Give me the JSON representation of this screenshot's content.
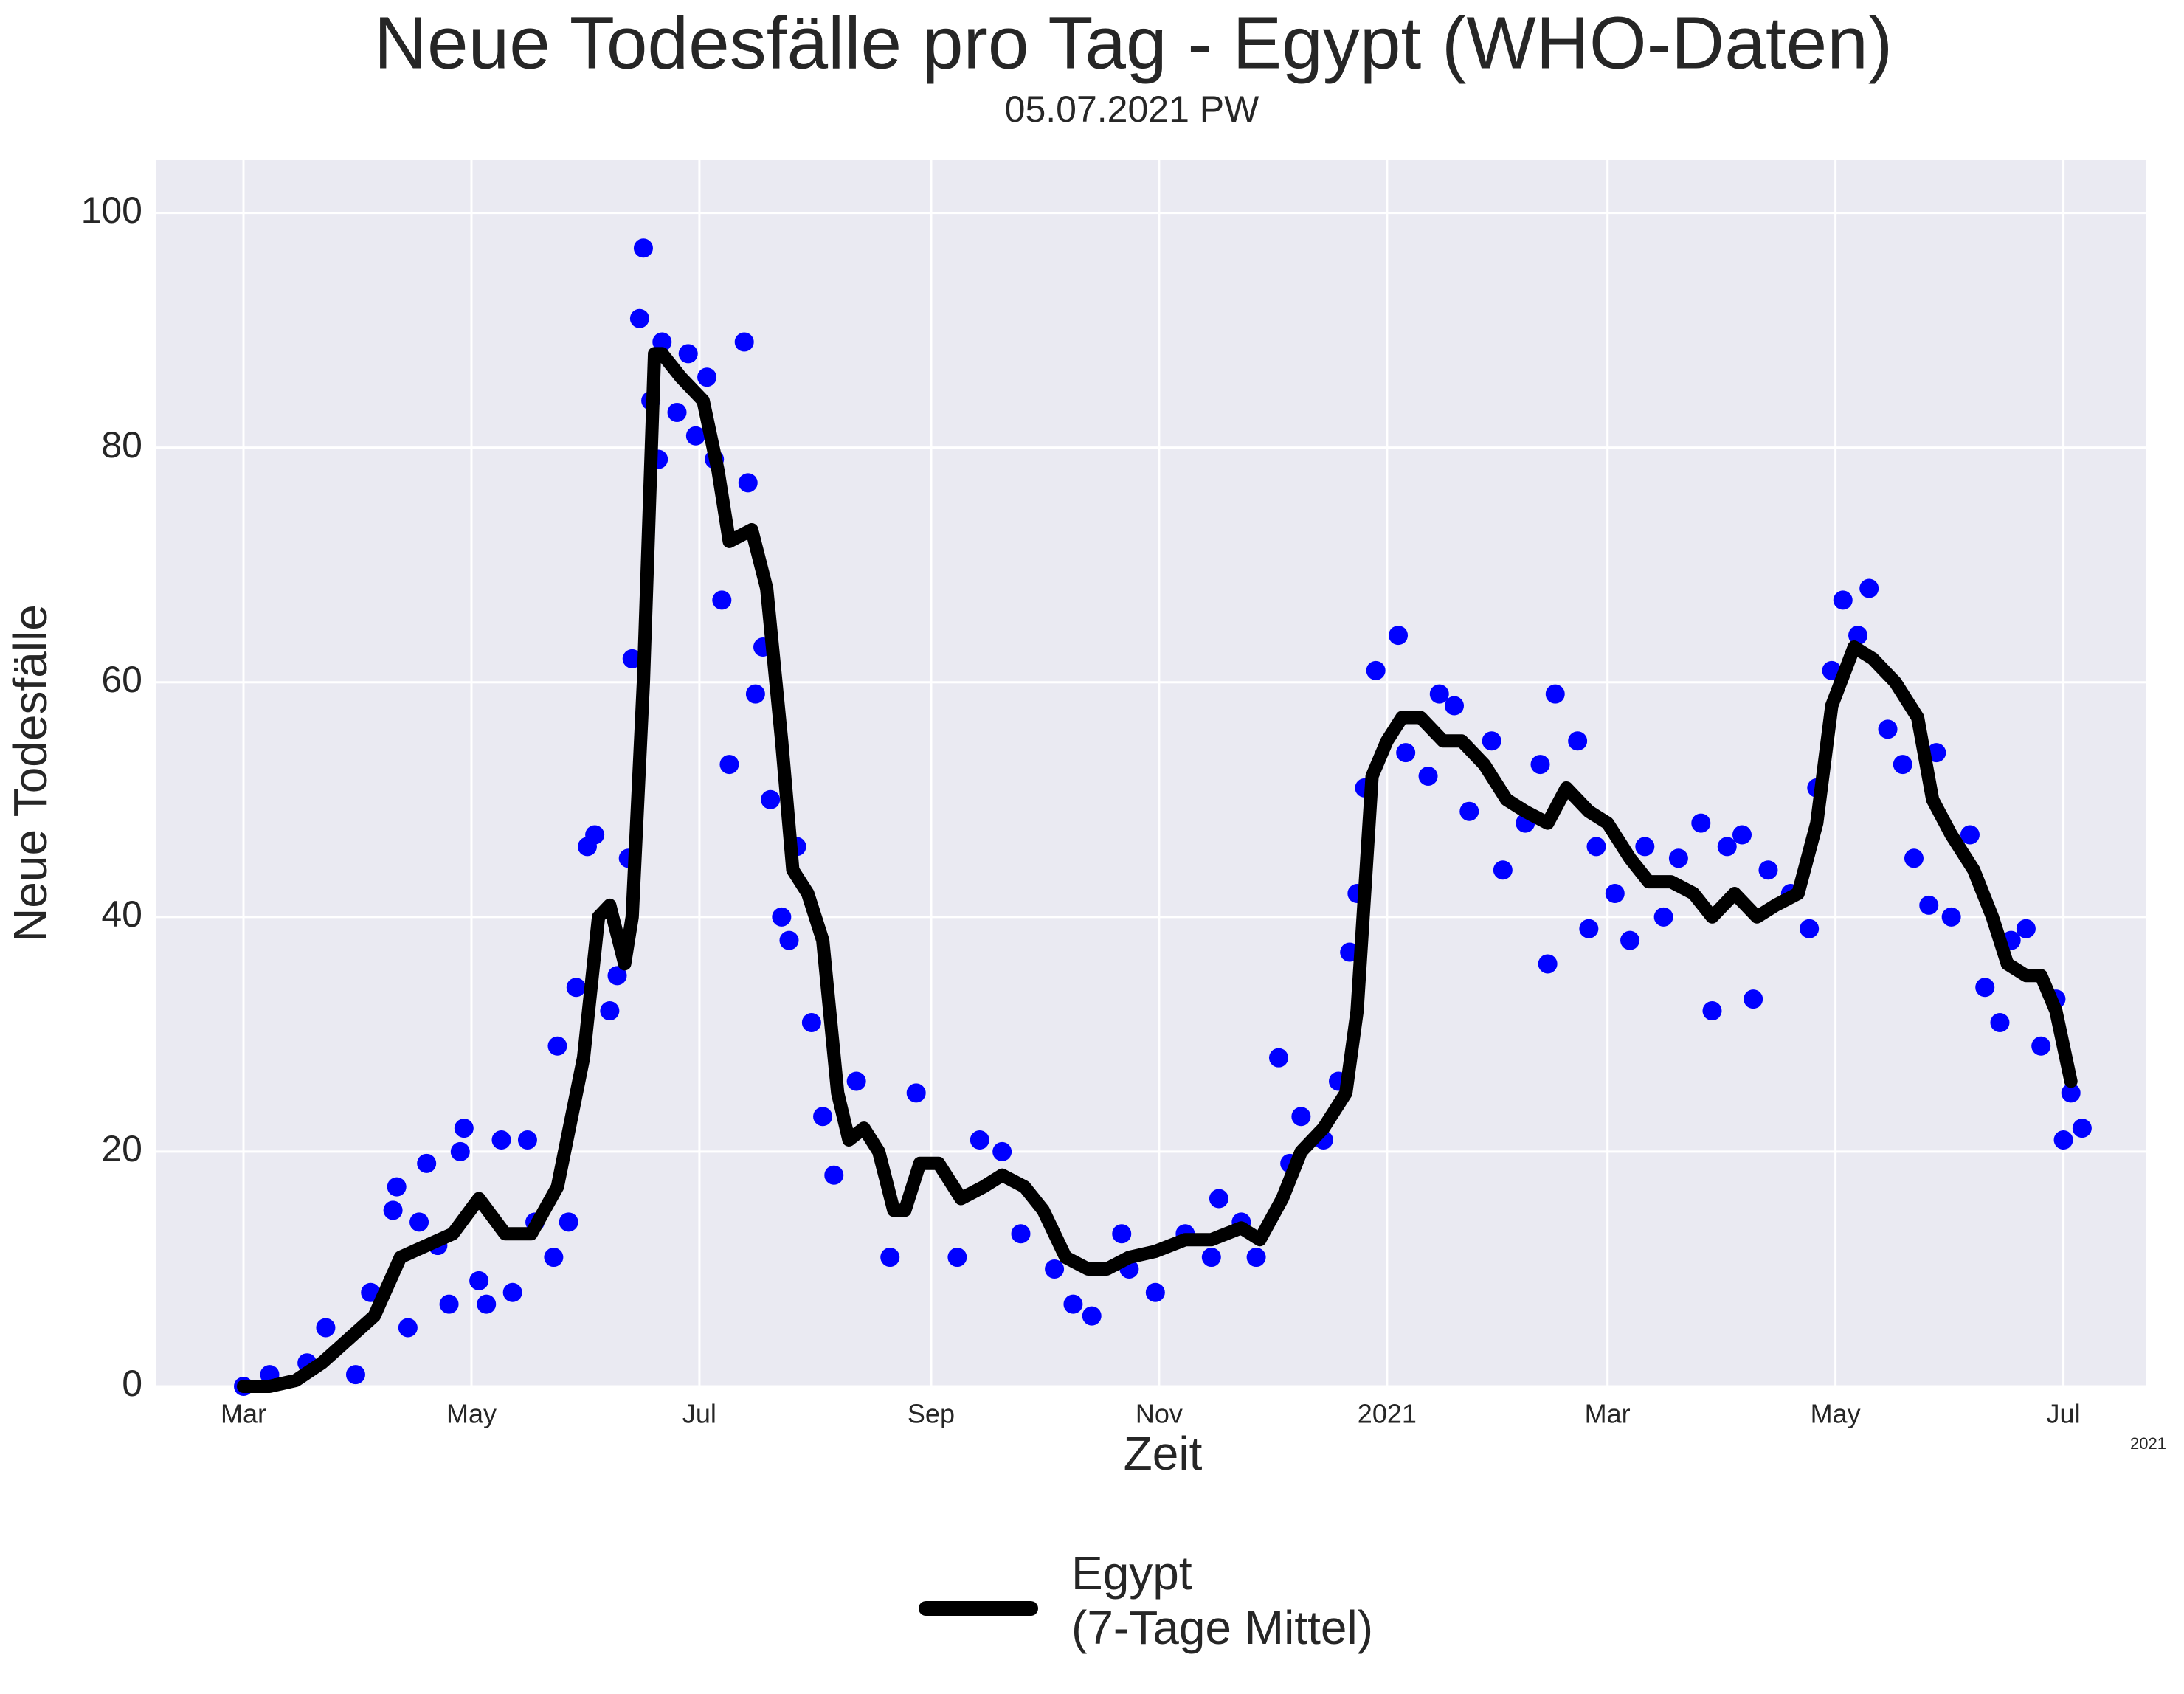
{
  "chart_data": {
    "type": "line",
    "title": "Neue Todesfälle pro Tag - Egypt (WHO-Daten)",
    "subtitle": "05.07.2021 PW",
    "xlabel": "Zeit",
    "ylabel": "Neue Todesfälle",
    "x_offset_label": "2021",
    "xlim": [
      -23.5,
      509
    ],
    "ylim": [
      0,
      104.5
    ],
    "xticks": [
      {
        "value": 0,
        "label": "Mar"
      },
      {
        "value": 61,
        "label": "May"
      },
      {
        "value": 122,
        "label": "Jul"
      },
      {
        "value": 184,
        "label": "Sep"
      },
      {
        "value": 245,
        "label": "Nov"
      },
      {
        "value": 306,
        "label": "2021"
      },
      {
        "value": 365,
        "label": "Mar"
      },
      {
        "value": 426,
        "label": "May"
      },
      {
        "value": 487,
        "label": "Jul"
      }
    ],
    "yticks": [
      0,
      20,
      40,
      60,
      80,
      100
    ],
    "grid": true,
    "background": "#eaeaf2",
    "legend": "bottom",
    "series": [
      {
        "type": "scatter",
        "color": "#0000ff",
        "x": [
          0,
          7,
          17,
          22,
          30,
          34,
          40,
          41,
          44,
          47,
          49,
          52,
          55,
          58,
          59,
          63,
          65,
          69,
          72,
          76,
          78,
          83,
          84,
          87,
          89,
          92,
          94,
          98,
          100,
          103,
          104,
          106,
          107,
          109,
          111,
          112,
          116,
          119,
          121,
          124,
          126,
          128,
          130,
          134,
          135,
          137,
          139,
          141,
          144,
          146,
          148,
          152,
          155,
          158,
          164,
          173,
          180,
          191,
          197,
          203,
          208,
          217,
          222,
          227,
          235,
          237,
          244,
          252,
          259,
          261,
          267,
          271,
          277,
          280,
          283,
          289,
          293,
          296,
          298,
          300,
          303,
          309,
          311,
          317,
          320,
          324,
          328,
          334,
          337,
          343,
          347,
          349,
          351,
          357,
          360,
          362,
          367,
          371,
          375,
          380,
          384,
          390,
          393,
          397,
          401,
          404,
          408,
          414,
          419,
          421,
          425,
          428,
          432,
          435,
          440,
          444,
          447,
          451,
          453,
          457,
          462,
          466,
          470,
          473,
          477,
          481,
          485,
          487,
          489,
          492
        ],
        "values": [
          0,
          1,
          2,
          5,
          1,
          8,
          15,
          17,
          5,
          14,
          19,
          12,
          7,
          20,
          22,
          9,
          7,
          21,
          8,
          21,
          14,
          11,
          29,
          14,
          34,
          46,
          47,
          32,
          35,
          45,
          62,
          91,
          97,
          84,
          79,
          89,
          83,
          88,
          81,
          86,
          79,
          67,
          53,
          89,
          77,
          59,
          63,
          50,
          40,
          38,
          46,
          31,
          23,
          18,
          26,
          11,
          25,
          11,
          21,
          20,
          13,
          10,
          7,
          6,
          13,
          10,
          8,
          13,
          11,
          16,
          14,
          11,
          28,
          19,
          23,
          21,
          26,
          37,
          42,
          51,
          61,
          64,
          54,
          52,
          59,
          58,
          49,
          55,
          44,
          48,
          53,
          36,
          59,
          55,
          39,
          46,
          42,
          38,
          46,
          40,
          45,
          48,
          32,
          46,
          47,
          33,
          44,
          42,
          39,
          51,
          61,
          67,
          64,
          68,
          56,
          53,
          45,
          41,
          54,
          40,
          47,
          34,
          31,
          38,
          39,
          29,
          33,
          21,
          25,
          22
        ]
      },
      {
        "type": "line",
        "name": "Egypt\n(7-Tage Mittel)",
        "color": "#000000",
        "x": [
          0,
          7,
          14,
          21,
          28,
          35,
          42,
          49,
          56,
          63,
          70,
          77,
          84,
          91,
          95,
          98,
          102,
          104,
          107,
          110,
          112,
          117,
          123,
          127,
          130,
          136,
          140,
          144,
          147,
          151,
          155,
          159,
          162,
          166,
          170,
          174,
          177,
          181,
          186,
          192,
          198,
          203,
          209,
          214,
          220,
          226,
          231,
          237,
          244,
          252,
          259,
          267,
          272,
          278,
          283,
          289,
          295,
          298,
          302,
          306,
          310,
          315,
          321,
          326,
          332,
          338,
          343,
          349,
          354,
          360,
          365,
          371,
          376,
          382,
          388,
          393,
          399,
          405,
          410,
          416,
          421,
          425,
          431,
          436,
          442,
          448,
          452,
          457,
          463,
          468,
          472,
          477,
          481,
          485,
          489
        ],
        "values": [
          0,
          0,
          0.5,
          2,
          4,
          6,
          11,
          12,
          13,
          16,
          13,
          13,
          17,
          28,
          40,
          41,
          36,
          40,
          60,
          88,
          88,
          86,
          84,
          78,
          72,
          73,
          68,
          55,
          44,
          42,
          38,
          25,
          21,
          22,
          20,
          15,
          15,
          19,
          19,
          16,
          17,
          18,
          17,
          15,
          11,
          10,
          10,
          11,
          11.5,
          12.5,
          12.5,
          13.5,
          12.5,
          16,
          20,
          22,
          25,
          32,
          52,
          55,
          57,
          57,
          55,
          55,
          53,
          50,
          49,
          48,
          51,
          49,
          48,
          45,
          43,
          43,
          42,
          40,
          42,
          40,
          41,
          42,
          48,
          58,
          63,
          62,
          60,
          57,
          50,
          47,
          44,
          40,
          36,
          35,
          35,
          32,
          26
        ]
      }
    ]
  }
}
